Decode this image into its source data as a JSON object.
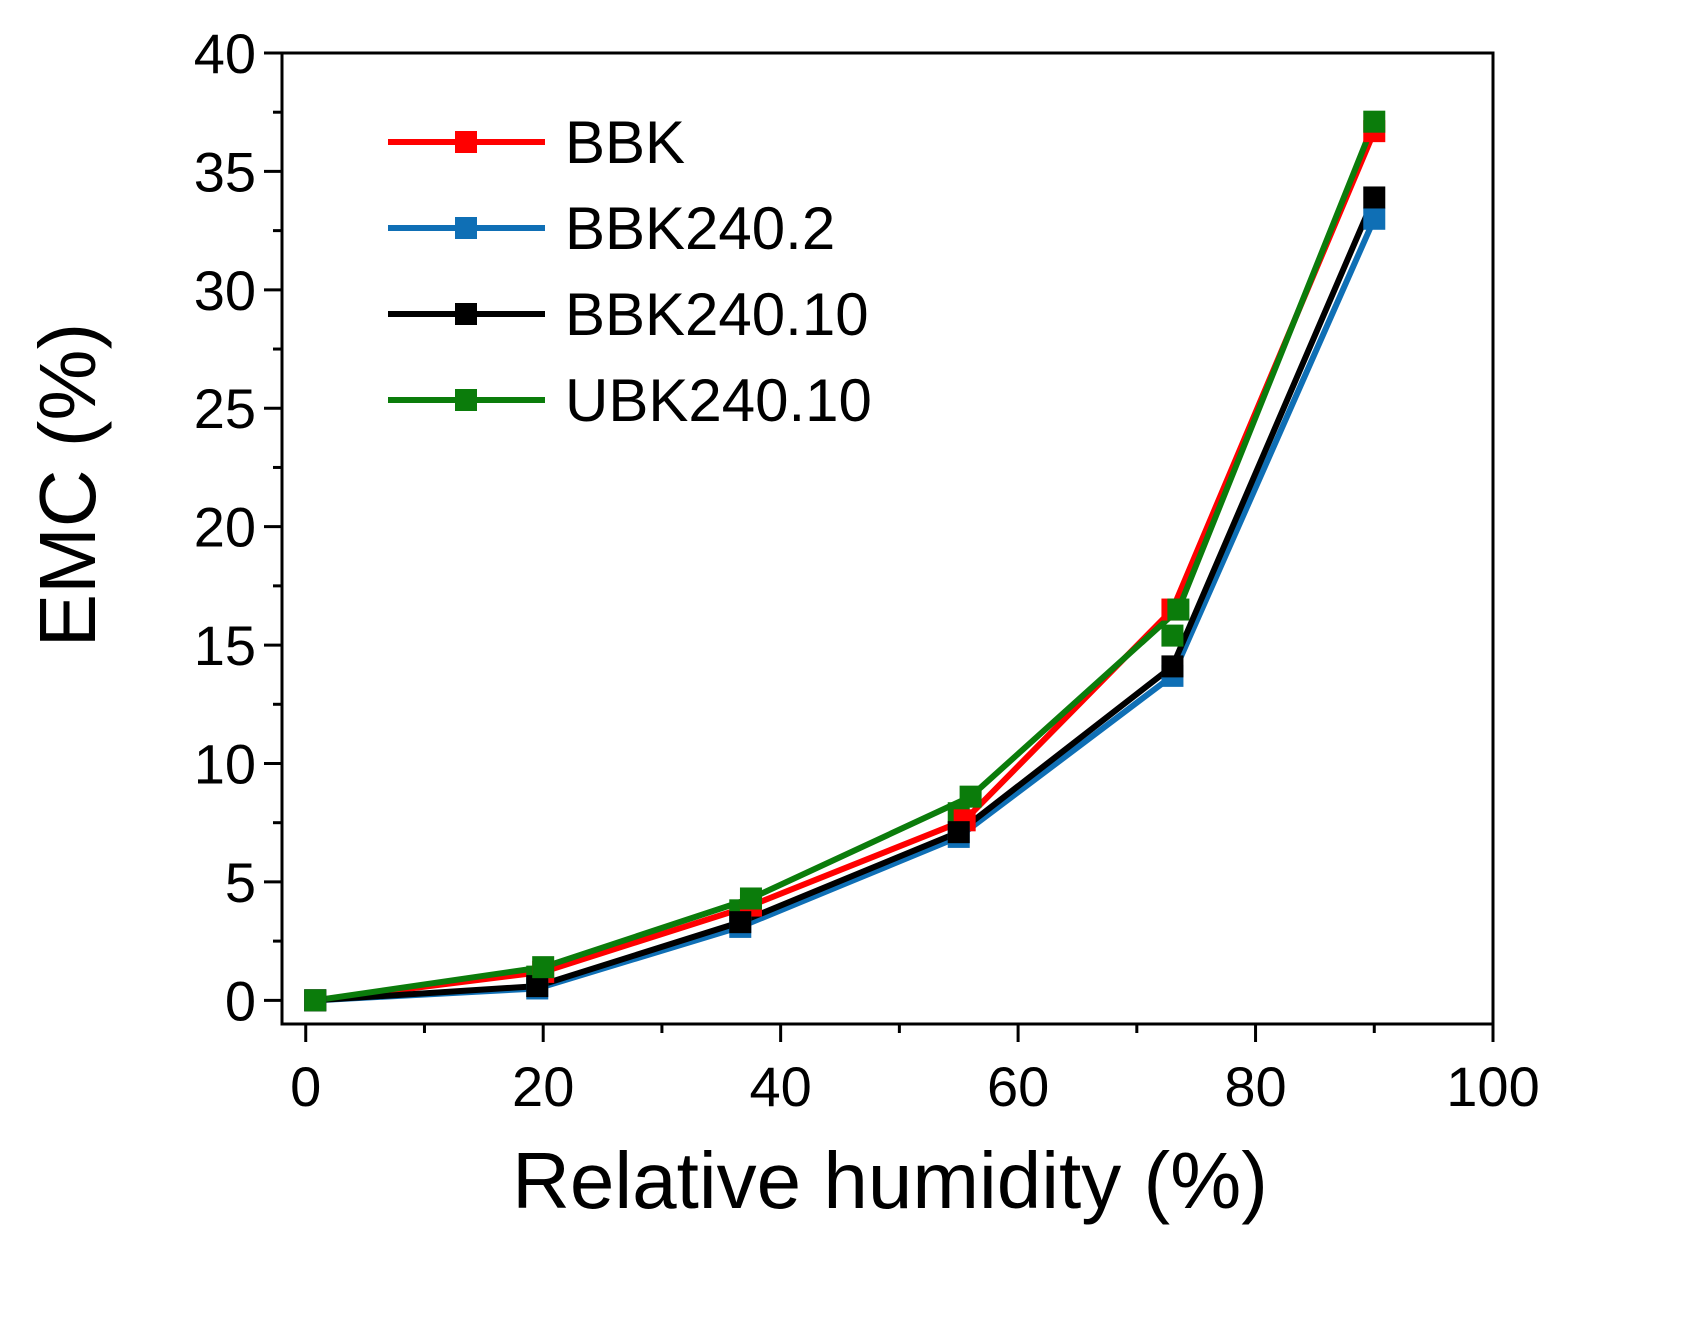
{
  "chart_data": {
    "type": "line",
    "title": "",
    "xlabel": "Relative humidity (%)",
    "ylabel": "EMC (%)",
    "xlim": [
      -2,
      100
    ],
    "ylim": [
      -1,
      40
    ],
    "xticks": [
      0,
      20,
      40,
      60,
      80,
      100
    ],
    "yticks": [
      0,
      5,
      10,
      15,
      20,
      25,
      30,
      35,
      40
    ],
    "x_minor_step": 10,
    "y_minor_step": 2.5,
    "grid": false,
    "legend_position": "top-left",
    "marker": "square",
    "series": [
      {
        "name": "BBK",
        "color": "#ff0000",
        "x": [
          0.8,
          20.0,
          37.5,
          55.5,
          73.0,
          90.0
        ],
        "y": [
          0,
          1.2,
          4.0,
          7.6,
          16.5,
          36.7
        ]
      },
      {
        "name": "BBK240.2",
        "color": "#0f6fb5",
        "x": [
          0.8,
          19.5,
          36.6,
          55.0,
          73.0,
          90.0
        ],
        "y": [
          0,
          0.5,
          3.1,
          6.9,
          13.7,
          33.0
        ]
      },
      {
        "name": "BBK240.10",
        "color": "#000000",
        "x": [
          0.8,
          19.5,
          36.6,
          55.0,
          73.0,
          90.0
        ],
        "y": [
          0,
          0.6,
          3.3,
          7.1,
          14.1,
          33.9
        ]
      },
      {
        "name": "UBK240.10",
        "color": "#0b7c0b",
        "x": [
          0.8,
          20.0,
          37.5,
          56.0,
          73.5,
          90.0
        ],
        "y": [
          0,
          1.4,
          4.3,
          8.6,
          16.5,
          37.1
        ]
      }
    ],
    "extra_points": [
      {
        "series": "UBK240.10",
        "x": 36.6,
        "y": 3.8
      },
      {
        "series": "UBK240.10",
        "x": 55.0,
        "y": 7.9
      },
      {
        "series": "UBK240.10",
        "x": 73.0,
        "y": 15.4
      },
      {
        "series": "UBK240.10",
        "x": 19.5,
        "y": 1.0
      }
    ]
  }
}
